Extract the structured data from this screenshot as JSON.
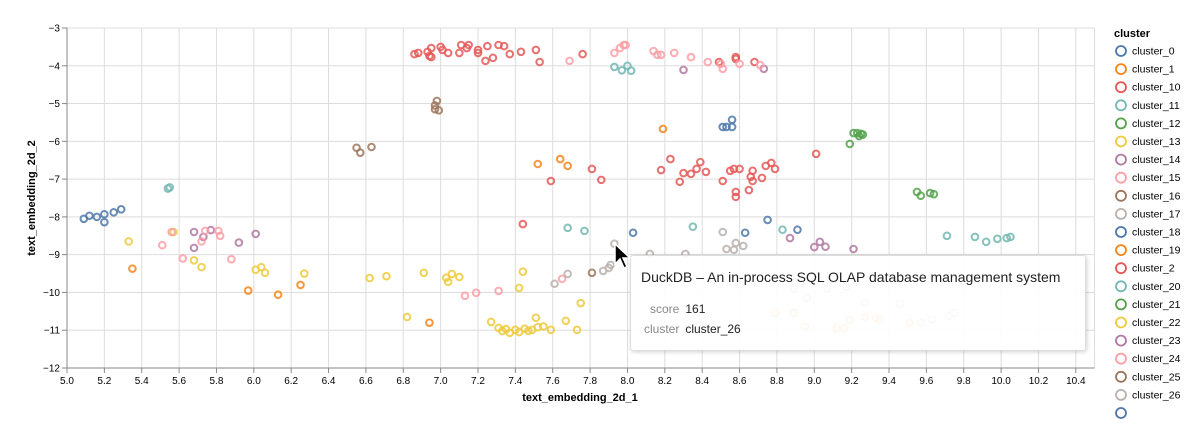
{
  "chart_data": {
    "type": "scatter",
    "xlabel": "text_embedding_2d_1",
    "ylabel": "text_embedding_2d_2",
    "xlim": [
      5.0,
      10.5
    ],
    "ylim": [
      -12,
      -3
    ],
    "xticks": [
      "5.0",
      "5.2",
      "5.4",
      "5.6",
      "5.8",
      "6.0",
      "6.2",
      "6.4",
      "6.6",
      "6.8",
      "7.0",
      "7.2",
      "7.4",
      "7.6",
      "7.8",
      "8.0",
      "8.2",
      "8.4",
      "8.6",
      "8.8",
      "9.0",
      "9.2",
      "9.4",
      "9.6",
      "9.8",
      "10.0",
      "10.2",
      "10.4"
    ],
    "yticks": [
      "−3",
      "−4",
      "−5",
      "−6",
      "−7",
      "−8",
      "−9",
      "−10",
      "−11",
      "−12"
    ],
    "grid": true,
    "marker": "hollow circle",
    "legend": {
      "title": "cluster",
      "placement": "right"
    },
    "series": [
      {
        "name": "cluster_0",
        "color": "#4c78a8",
        "points": [
          [
            5.09,
            -8.05
          ],
          [
            5.12,
            -7.97
          ],
          [
            5.16,
            -8.0
          ],
          [
            5.2,
            -7.93
          ],
          [
            5.2,
            -8.14
          ],
          [
            5.25,
            -7.88
          ],
          [
            5.29,
            -7.8
          ]
        ]
      },
      {
        "name": "cluster_1",
        "color": "#f58518",
        "points": [
          [
            5.35,
            -9.37
          ],
          [
            5.97,
            -9.95
          ],
          [
            6.13,
            -10.06
          ],
          [
            6.25,
            -9.8
          ],
          [
            6.94,
            -10.8
          ],
          [
            8.19,
            -5.67
          ]
        ]
      },
      {
        "name": "cluster_10",
        "color": "#e45756",
        "points": [
          [
            6.86,
            -3.69
          ],
          [
            6.88,
            -3.66
          ],
          [
            6.93,
            -3.63
          ],
          [
            6.94,
            -3.74
          ],
          [
            6.95,
            -3.53
          ],
          [
            6.95,
            -3.77
          ],
          [
            7.0,
            -3.5
          ],
          [
            7.01,
            -3.58
          ],
          [
            7.04,
            -3.66
          ],
          [
            7.1,
            -3.66
          ],
          [
            7.11,
            -3.45
          ],
          [
            7.14,
            -3.53
          ],
          [
            7.15,
            -3.45
          ],
          [
            7.2,
            -3.58
          ],
          [
            7.2,
            -3.66
          ],
          [
            7.24,
            -3.87
          ],
          [
            7.25,
            -3.48
          ],
          [
            7.28,
            -3.79
          ],
          [
            7.31,
            -3.45
          ],
          [
            7.34,
            -3.48
          ],
          [
            7.37,
            -3.69
          ],
          [
            7.43,
            -3.63
          ],
          [
            7.51,
            -3.58
          ],
          [
            7.53,
            -3.9
          ],
          [
            7.76,
            -3.69
          ],
          [
            8.49,
            -3.9
          ],
          [
            8.58,
            -3.77
          ],
          [
            8.58,
            -3.82
          ],
          [
            8.68,
            -3.9
          ]
        ]
      },
      {
        "name": "cluster_11",
        "color": "#72b7b2",
        "points": [
          [
            5.54,
            -7.25
          ],
          [
            5.55,
            -7.22
          ],
          [
            7.93,
            -4.03
          ],
          [
            7.97,
            -4.12
          ],
          [
            8.0,
            -4.0
          ],
          [
            8.02,
            -4.13
          ]
        ]
      },
      {
        "name": "cluster_12",
        "color": "#54a24b",
        "points": [
          [
            9.21,
            -5.78
          ],
          [
            9.23,
            -5.78
          ],
          [
            9.25,
            -5.8
          ],
          [
            9.24,
            -5.86
          ],
          [
            9.26,
            -5.82
          ],
          [
            9.19,
            -6.07
          ]
        ]
      },
      {
        "name": "cluster_13",
        "color": "#eeca3b",
        "points": [
          [
            5.33,
            -8.65
          ],
          [
            5.57,
            -8.4
          ],
          [
            5.68,
            -9.15
          ],
          [
            5.72,
            -9.33
          ],
          [
            6.01,
            -9.4
          ],
          [
            6.04,
            -9.33
          ],
          [
            6.06,
            -9.48
          ],
          [
            6.27,
            -9.5
          ],
          [
            6.62,
            -9.62
          ],
          [
            6.71,
            -9.57
          ],
          [
            6.91,
            -9.48
          ],
          [
            7.03,
            -9.61
          ],
          [
            7.04,
            -9.72
          ],
          [
            7.06,
            -9.51
          ],
          [
            7.1,
            -9.59
          ],
          [
            7.44,
            -9.45
          ],
          [
            7.42,
            -9.88
          ],
          [
            6.82,
            -10.65
          ],
          [
            7.75,
            -10.28
          ]
        ]
      },
      {
        "name": "cluster_14",
        "color": "#b279a2",
        "points": [
          [
            5.68,
            -8.4
          ],
          [
            5.68,
            -8.82
          ],
          [
            5.73,
            -8.53
          ],
          [
            5.77,
            -8.35
          ],
          [
            5.92,
            -8.68
          ],
          [
            6.01,
            -8.45
          ],
          [
            8.3,
            -4.11
          ],
          [
            8.73,
            -4.08
          ]
        ]
      },
      {
        "name": "cluster_15",
        "color": "#ff9da6",
        "points": [
          [
            5.51,
            -8.75
          ],
          [
            5.56,
            -8.4
          ],
          [
            5.62,
            -9.1
          ],
          [
            5.72,
            -8.65
          ],
          [
            5.74,
            -8.37
          ],
          [
            5.81,
            -8.37
          ],
          [
            5.82,
            -8.5
          ],
          [
            5.88,
            -9.12
          ],
          [
            7.69,
            -3.87
          ],
          [
            7.93,
            -3.66
          ],
          [
            7.96,
            -3.53
          ],
          [
            7.98,
            -3.45
          ],
          [
            7.99,
            -3.45
          ],
          [
            8.14,
            -3.61
          ],
          [
            8.16,
            -3.71
          ],
          [
            8.18,
            -3.71
          ],
          [
            8.25,
            -3.66
          ],
          [
            8.34,
            -3.77
          ],
          [
            8.43,
            -3.9
          ],
          [
            8.5,
            -3.95
          ],
          [
            8.51,
            -4.08
          ],
          [
            8.6,
            -3.95
          ],
          [
            8.71,
            -3.98
          ]
        ]
      },
      {
        "name": "cluster_16",
        "color": "#9d755d",
        "points": [
          [
            6.55,
            -6.17
          ],
          [
            6.57,
            -6.3
          ],
          [
            6.63,
            -6.15
          ]
        ]
      },
      {
        "name": "cluster_17",
        "color": "#bab0ac",
        "points": [
          [
            8.12,
            -8.98
          ],
          [
            8.31,
            -8.98
          ],
          [
            8.89,
            -9.9
          ],
          [
            8.96,
            -10.14
          ],
          [
            9.07,
            -9.9
          ],
          [
            9.17,
            -9.85
          ]
        ]
      },
      {
        "name": "cluster_18",
        "color": "#4c78a8",
        "points": [
          [
            8.51,
            -5.62
          ],
          [
            8.53,
            -5.62
          ],
          [
            8.56,
            -5.43
          ],
          [
            8.56,
            -5.62
          ],
          [
            8.03,
            -8.42
          ],
          [
            8.63,
            -8.42
          ],
          [
            8.75,
            -8.08
          ],
          [
            8.91,
            -8.34
          ]
        ]
      },
      {
        "name": "cluster_19",
        "color": "#f58518",
        "points": [
          [
            7.52,
            -6.6
          ],
          [
            7.64,
            -6.47
          ],
          [
            7.68,
            -6.65
          ],
          [
            8.79,
            -10.54
          ],
          [
            8.89,
            -10.54
          ],
          [
            8.95,
            -10.9
          ],
          [
            9.12,
            -10.94
          ],
          [
            9.16,
            -10.94
          ],
          [
            9.19,
            -10.72
          ],
          [
            9.27,
            -10.65
          ],
          [
            9.33,
            -10.67
          ],
          [
            9.35,
            -10.72
          ],
          [
            9.51,
            -10.8
          ]
        ]
      },
      {
        "name": "cluster_2",
        "color": "#e45756",
        "points": [
          [
            7.44,
            -8.19
          ],
          [
            7.59,
            -7.05
          ],
          [
            7.81,
            -6.73
          ],
          [
            7.86,
            -7.02
          ],
          [
            8.18,
            -6.76
          ],
          [
            8.23,
            -6.47
          ],
          [
            8.28,
            -7.07
          ],
          [
            8.3,
            -6.84
          ],
          [
            8.34,
            -6.86
          ],
          [
            8.37,
            -6.73
          ],
          [
            8.39,
            -6.55
          ],
          [
            8.42,
            -6.81
          ],
          [
            8.51,
            -7.05
          ],
          [
            8.55,
            -6.78
          ],
          [
            8.57,
            -6.73
          ],
          [
            8.6,
            -6.73
          ],
          [
            8.58,
            -7.34
          ],
          [
            8.58,
            -7.47
          ],
          [
            8.66,
            -6.94
          ],
          [
            8.67,
            -7.05
          ],
          [
            8.67,
            -6.78
          ],
          [
            8.65,
            -7.29
          ],
          [
            8.72,
            -6.97
          ],
          [
            8.74,
            -6.65
          ],
          [
            8.77,
            -6.57
          ],
          [
            8.79,
            -6.73
          ],
          [
            9.01,
            -6.33
          ]
        ]
      },
      {
        "name": "cluster_20",
        "color": "#72b7b2",
        "points": [
          [
            7.68,
            -8.29
          ],
          [
            7.77,
            -8.37
          ],
          [
            8.35,
            -8.26
          ],
          [
            8.83,
            -8.34
          ],
          [
            9.71,
            -8.5
          ],
          [
            9.86,
            -8.53
          ],
          [
            9.92,
            -8.66
          ],
          [
            9.98,
            -8.58
          ],
          [
            10.03,
            -8.56
          ],
          [
            10.05,
            -8.53
          ]
        ]
      },
      {
        "name": "cluster_21",
        "color": "#54a24b",
        "points": [
          [
            9.55,
            -7.34
          ],
          [
            9.57,
            -7.44
          ],
          [
            9.62,
            -7.37
          ],
          [
            9.64,
            -7.4
          ]
        ]
      },
      {
        "name": "cluster_22",
        "color": "#eeca3b",
        "points": [
          [
            7.27,
            -10.78
          ],
          [
            7.31,
            -10.94
          ],
          [
            7.33,
            -11.02
          ],
          [
            7.35,
            -10.97
          ],
          [
            7.37,
            -11.07
          ],
          [
            7.4,
            -10.99
          ],
          [
            7.42,
            -11.05
          ],
          [
            7.45,
            -10.96
          ],
          [
            7.47,
            -11.02
          ],
          [
            7.49,
            -10.99
          ],
          [
            7.51,
            -10.67
          ],
          [
            7.52,
            -10.92
          ],
          [
            7.55,
            -10.9
          ],
          [
            7.59,
            -10.99
          ],
          [
            7.67,
            -10.75
          ],
          [
            7.73,
            -10.99
          ]
        ]
      },
      {
        "name": "cluster_23",
        "color": "#b279a2",
        "points": [
          [
            8.87,
            -8.56
          ],
          [
            9.0,
            -8.8
          ],
          [
            9.03,
            -8.66
          ],
          [
            9.06,
            -8.79
          ],
          [
            9.21,
            -8.85
          ]
        ]
      },
      {
        "name": "cluster_24",
        "color": "#ff9da6",
        "points": [
          [
            7.13,
            -10.09
          ],
          [
            7.19,
            -10.01
          ],
          [
            7.31,
            -9.96
          ],
          [
            7.65,
            -9.64
          ]
        ]
      },
      {
        "name": "cluster_25",
        "color": "#9d755d",
        "points": [
          [
            6.97,
            -5.15
          ],
          [
            6.98,
            -4.93
          ],
          [
            6.99,
            -5.18
          ],
          [
            6.97,
            -5.05
          ],
          [
            7.81,
            -9.48
          ]
        ]
      },
      {
        "name": "cluster_26",
        "color": "#bab0ac",
        "points": [
          [
            7.93,
            -8.71
          ],
          [
            7.87,
            -9.43
          ],
          [
            7.9,
            -9.35
          ],
          [
            7.91,
            -9.27
          ],
          [
            7.61,
            -9.77
          ],
          [
            7.68,
            -9.51
          ],
          [
            8.51,
            -8.4
          ],
          [
            8.53,
            -8.85
          ],
          [
            8.57,
            -8.87
          ],
          [
            8.58,
            -8.69
          ],
          [
            8.62,
            -8.77
          ],
          [
            9.27,
            -10.27
          ],
          [
            9.46,
            -10.3
          ],
          [
            9.57,
            -10.8
          ],
          [
            9.63,
            -10.72
          ],
          [
            9.72,
            -10.62
          ],
          [
            9.75,
            -10.54
          ]
        ]
      }
    ]
  },
  "tooltip": {
    "title": "DuckDB – An in-process SQL OLAP database management system",
    "score_label": "score",
    "score_value": "161",
    "cluster_label": "cluster",
    "cluster_value": "cluster_26"
  },
  "cursor_icon": "arrow-pointer"
}
